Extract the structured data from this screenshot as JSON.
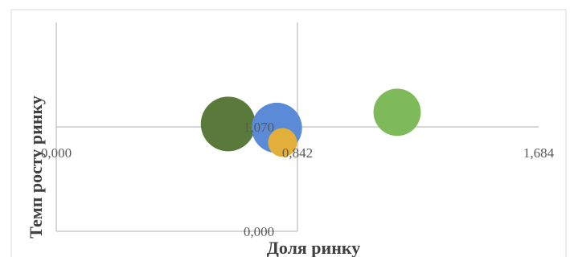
{
  "chart_data": {
    "type": "bubble",
    "xlabel": "Доля ринку",
    "ylabel": "Темп росту ринку",
    "xlim": [
      0,
      1.684
    ],
    "ylim": [
      0,
      2.14
    ],
    "tick_labels": {
      "x_min": "0,000",
      "x_mid": "0,842",
      "x_max": "1,684",
      "y_min": "0,000",
      "y_mid": "1,070"
    },
    "grid": false,
    "legend": "none",
    "series": [
      {
        "x": 0.6,
        "y": 1.1,
        "size": 1.0,
        "color": "#5a7a3c"
      },
      {
        "x": 0.77,
        "y": 1.06,
        "size": 0.85,
        "color": "#5b8bd6"
      },
      {
        "x": 0.79,
        "y": 0.91,
        "size": 0.28,
        "color": "#e2b03a"
      },
      {
        "x": 1.19,
        "y": 1.22,
        "size": 0.75,
        "color": "#7fba5a"
      }
    ]
  }
}
